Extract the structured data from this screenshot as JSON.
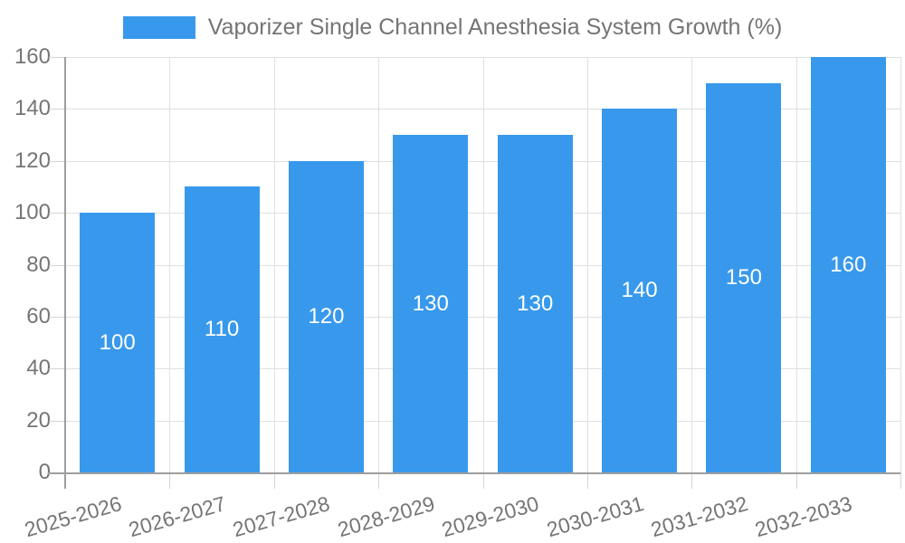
{
  "legend": {
    "label": "Vaporizer Single Channel Anesthesia System Growth (%)"
  },
  "chart_data": {
    "type": "bar",
    "title": "Vaporizer Single Channel Anesthesia System Growth (%)",
    "categories": [
      "2025-2026",
      "2026-2027",
      "2027-2028",
      "2028-2029",
      "2029-2030",
      "2030-2031",
      "2031-2032",
      "2032-2033"
    ],
    "values": [
      100,
      110,
      120,
      130,
      130,
      140,
      150,
      160
    ],
    "xlabel": "",
    "ylabel": "",
    "ylim": [
      0,
      160
    ],
    "ytick_step": 20,
    "ytick_labels": [
      "0",
      "20",
      "40",
      "60",
      "80",
      "100",
      "120",
      "140",
      "160"
    ],
    "grid": true,
    "legend_position": "top",
    "x_label_rotation_deg": -16,
    "colors": {
      "bar": "#3899ec",
      "bar_value_text": "#ffffff",
      "axis_text": "#757575",
      "gridline": "#e0e0e0",
      "tick_mark": "#d4d4d4",
      "axis_line": "#9e9e9e",
      "background": "#ffffff"
    }
  }
}
